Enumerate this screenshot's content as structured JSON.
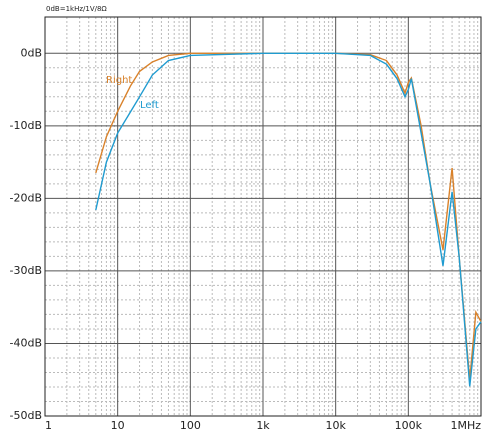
{
  "chart_data": {
    "type": "line",
    "note": "0dB=1kHz/1V/8Ω",
    "xscale": "log",
    "xlim": [
      1,
      1000000
    ],
    "xticks": [
      {
        "value": 1,
        "label": "1"
      },
      {
        "value": 10,
        "label": "10"
      },
      {
        "value": 100,
        "label": "100"
      },
      {
        "value": 1000,
        "label": "1k"
      },
      {
        "value": 10000,
        "label": "10k"
      },
      {
        "value": 100000,
        "label": "100k"
      },
      {
        "value": 1000000,
        "label": "1MHz"
      }
    ],
    "ylim": [
      -50,
      5
    ],
    "yticks": [
      {
        "value": -50,
        "label": "-50dB"
      },
      {
        "value": -40,
        "label": "-40dB"
      },
      {
        "value": -30,
        "label": "-30dB"
      },
      {
        "value": -20,
        "label": "-20dB"
      },
      {
        "value": -10,
        "label": "-10dB"
      },
      {
        "value": 0,
        "label": "0dB"
      }
    ],
    "grid": true,
    "series": [
      {
        "name": "Right",
        "color": "#d9822b",
        "x": [
          5,
          7,
          10,
          15,
          20,
          30,
          50,
          100,
          1000,
          10000,
          30000,
          50000,
          70000,
          90000,
          100000,
          110000,
          150000,
          200000,
          300000,
          400000,
          500000,
          700000,
          850000,
          1000000
        ],
        "values": [
          -16.5,
          -11.5,
          -8,
          -4.5,
          -2.5,
          -1.2,
          -0.3,
          0,
          0,
          0,
          -0.2,
          -1,
          -3,
          -5.5,
          -4,
          -3.4,
          -10,
          -18,
          -27.1,
          -15.8,
          -28,
          -45,
          -35.7,
          -37
        ]
      },
      {
        "name": "Left",
        "color": "#1f9bd0",
        "x": [
          5,
          7,
          10,
          20,
          30,
          50,
          100,
          1000,
          10000,
          30000,
          50000,
          70000,
          90000,
          100000,
          110000,
          150000,
          200000,
          300000,
          400000,
          500000,
          700000,
          850000,
          1000000
        ],
        "values": [
          -21.6,
          -15,
          -11,
          -6,
          -3,
          -1,
          -0.3,
          0,
          0,
          -0.3,
          -1.5,
          -3.5,
          -6,
          -5,
          -3.5,
          -11,
          -18,
          -29.3,
          -19.1,
          -28,
          -45.9,
          -38,
          -37
        ]
      }
    ]
  }
}
